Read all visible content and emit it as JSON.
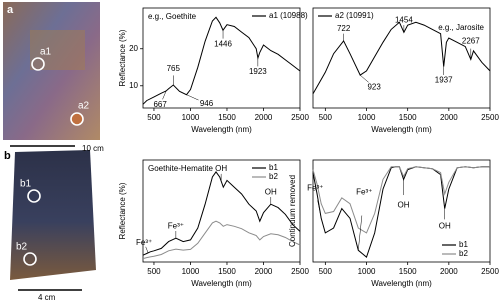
{
  "photos": [
    {
      "panel": "a",
      "labels": [
        "a1",
        "a2"
      ],
      "scale": "10 cm"
    },
    {
      "panel": "b",
      "labels": [
        "b1",
        "b2"
      ],
      "scale": "4 cm"
    }
  ],
  "chart_data": [
    {
      "type": "line",
      "annotation": "e.g., Goethite",
      "xlabel": "Wavelength (nm)",
      "ylabel": "Reflectance (%)",
      "xlim": [
        350,
        2500
      ],
      "xticks": [
        500,
        1000,
        1500,
        2000,
        2500
      ],
      "ylim": [
        4,
        31
      ],
      "yticks": [
        10,
        20
      ],
      "legend": "upper right",
      "x": [
        350,
        400,
        500,
        600,
        667,
        700,
        765,
        850,
        946,
        1000,
        1100,
        1200,
        1300,
        1350,
        1400,
        1446,
        1500,
        1600,
        1700,
        1800,
        1900,
        1923,
        1950,
        2000,
        2100,
        2200,
        2300,
        2400,
        2500
      ],
      "series": [
        {
          "name": "a1 (10988)",
          "color": "#000000",
          "values": [
            5,
            6,
            7,
            8,
            8.6,
            9.2,
            10.2,
            8.5,
            7.6,
            9,
            15,
            22,
            27.5,
            28.5,
            27,
            25,
            26.5,
            26,
            24.5,
            23,
            20,
            17.5,
            19,
            21,
            19.5,
            18.5,
            17,
            15.5,
            14
          ]
        }
      ],
      "peaks": [
        {
          "label": "765",
          "x": 765
        },
        {
          "label": "667",
          "x": 667
        },
        {
          "label": "946",
          "x": 946
        },
        {
          "label": "1446",
          "x": 1446
        },
        {
          "label": "1923",
          "x": 1923
        }
      ]
    },
    {
      "type": "line",
      "annotation": "e.g., Jarosite",
      "xlabel": "Wavelength (nm)",
      "xlim": [
        350,
        2500
      ],
      "xticks": [
        500,
        1000,
        1500,
        2000,
        2500
      ],
      "ylim": [
        2,
        9
      ],
      "legend": "upper left",
      "x": [
        350,
        400,
        500,
        600,
        722,
        800,
        923,
        1000,
        1100,
        1200,
        1300,
        1400,
        1454,
        1500,
        1600,
        1700,
        1800,
        1900,
        1937,
        1970,
        2000,
        2100,
        2200,
        2267,
        2300,
        2400,
        2500
      ],
      "series": [
        {
          "name": "a2 (10991)",
          "color": "#000000",
          "values": [
            3,
            3.5,
            4.5,
            5.8,
            6.7,
            5.8,
            4.3,
            4.6,
            5.6,
            6.6,
            7.5,
            8,
            7.3,
            7.8,
            8,
            7.8,
            7.5,
            7.2,
            4.9,
            6.6,
            6.9,
            6.6,
            6.3,
            5.4,
            6,
            5.2,
            4.6
          ]
        }
      ],
      "peaks": [
        {
          "label": "722",
          "x": 722
        },
        {
          "label": "923",
          "x": 923
        },
        {
          "label": "1454",
          "x": 1454
        },
        {
          "label": "1937",
          "x": 1937
        },
        {
          "label": "2267",
          "x": 2267
        }
      ]
    },
    {
      "type": "line",
      "annotation": "Goethite-Hematite",
      "xlabel": "Wavelength (nm)",
      "ylabel": "Reflectance (%)",
      "xlim": [
        350,
        2500
      ],
      "xticks": [
        500,
        1000,
        1500,
        2000,
        2500
      ],
      "ylim": [
        0,
        30
      ],
      "legend": "upper right",
      "x": [
        350,
        400,
        450,
        500,
        600,
        700,
        800,
        900,
        1000,
        1100,
        1200,
        1300,
        1350,
        1400,
        1450,
        1500,
        1600,
        1700,
        1800,
        1900,
        1950,
        2000,
        2100,
        2200,
        2300,
        2400,
        2500
      ],
      "series": [
        {
          "name": "b1",
          "color": "#000000",
          "values": [
            2,
            2.5,
            3,
            3.3,
            4,
            6,
            7,
            6,
            6.5,
            10,
            17,
            25,
            26.5,
            25,
            22,
            24,
            22,
            20,
            17,
            15,
            12,
            14.5,
            17,
            16,
            14,
            11,
            9
          ]
        },
        {
          "name": "b2",
          "color": "#8c8c8c",
          "values": [
            1,
            1.3,
            1.5,
            1.7,
            2.2,
            3.3,
            3.8,
            3.5,
            3.7,
            5.5,
            8.5,
            11.5,
            12,
            11.5,
            10.5,
            11,
            10.5,
            9.8,
            8.6,
            7.8,
            6.5,
            7.5,
            8.3,
            8,
            7.2,
            6,
            5
          ]
        }
      ],
      "peaks": [
        {
          "label": "Fe³⁺",
          "x": 420
        },
        {
          "label": "Fe³⁺",
          "x": 800
        },
        {
          "label": "OH",
          "x": 1420
        },
        {
          "label": "OH",
          "x": 2100
        }
      ]
    },
    {
      "type": "line",
      "xlabel": "Wavelength (nm)",
      "ylabel": "Continuum removed",
      "xlim": [
        350,
        2500
      ],
      "xticks": [
        500,
        1000,
        1500,
        2000,
        2500
      ],
      "ylim": [
        0,
        1.05
      ],
      "legend": "lower right",
      "x": [
        350,
        400,
        450,
        500,
        600,
        700,
        800,
        900,
        1000,
        1100,
        1200,
        1300,
        1350,
        1400,
        1450,
        1500,
        1600,
        1700,
        1800,
        1900,
        1950,
        2000,
        2100,
        2200,
        2300,
        2400,
        2500
      ],
      "series": [
        {
          "name": "b1",
          "color": "#000000",
          "values": [
            0.92,
            0.7,
            0.45,
            0.3,
            0.35,
            0.55,
            0.45,
            0.12,
            0.05,
            0.3,
            0.75,
            0.97,
            0.98,
            0.98,
            0.85,
            0.95,
            0.98,
            0.97,
            0.96,
            0.9,
            0.55,
            0.75,
            0.97,
            0.98,
            0.97,
            0.98,
            0.98
          ]
        },
        {
          "name": "b2",
          "color": "#8c8c8c",
          "values": [
            0.95,
            0.8,
            0.6,
            0.5,
            0.52,
            0.66,
            0.6,
            0.35,
            0.3,
            0.5,
            0.85,
            0.98,
            0.98,
            0.98,
            0.88,
            0.96,
            0.98,
            0.97,
            0.96,
            0.92,
            0.7,
            0.82,
            0.97,
            0.98,
            0.97,
            0.98,
            0.98
          ]
        }
      ],
      "peaks": [
        {
          "label": "Fe³⁺",
          "x": 450
        },
        {
          "label": "Fe³⁺",
          "x": 900
        },
        {
          "label": "OH",
          "x": 1450
        },
        {
          "label": "OH",
          "x": 1950
        }
      ]
    }
  ]
}
